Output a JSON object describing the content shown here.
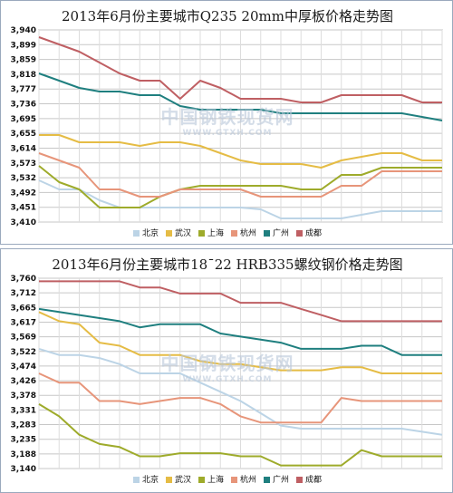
{
  "charts": [
    {
      "title": "2013年6月份主要城市Q235 20mm中厚板价格走势图",
      "watermark": {
        "main": "中国钢铁现货网",
        "sub": "WWW.GTXH.COM"
      }
    },
    {
      "title": "2013年6月份主要城市18¯22 HRB335螺纹钢价格走势图",
      "watermark": {
        "main": "中国钢铁现货网",
        "sub": "WWW.GTXH.COM"
      }
    }
  ],
  "series_colors": {
    "北京": "#bcd4e6",
    "武汉": "#e5bc45",
    "上海": "#9eab2b",
    "杭州": "#e7957a",
    "广州": "#1f7f7f",
    "成都": "#bf5f63"
  },
  "chart_data": [
    {
      "type": "line",
      "title": "2013年6月份主要城市Q235 20mm中厚板价格走势图",
      "ylim": [
        3410,
        3940
      ],
      "yticks": [
        "3,940",
        "3,899",
        "3,859",
        "3,818",
        "3,777",
        "3,736",
        "3,695",
        "3,655",
        "3,614",
        "3,573",
        "3,532",
        "3,492",
        "3,451",
        "3,410"
      ],
      "x": [
        1,
        2,
        3,
        4,
        5,
        6,
        7,
        8,
        9,
        10,
        11,
        12,
        13,
        14,
        15,
        16,
        17,
        18,
        19,
        20,
        21
      ],
      "grid": true,
      "legend_position": "bottom",
      "series": [
        {
          "name": "北京",
          "values": [
            3525,
            3500,
            3500,
            3470,
            3450,
            3450,
            3450,
            3450,
            3450,
            3450,
            3450,
            3445,
            3420,
            3420,
            3420,
            3420,
            3430,
            3440,
            3440,
            3440,
            3440
          ]
        },
        {
          "name": "武汉",
          "values": [
            3650,
            3650,
            3630,
            3630,
            3630,
            3620,
            3630,
            3630,
            3620,
            3600,
            3580,
            3570,
            3570,
            3570,
            3560,
            3580,
            3590,
            3600,
            3600,
            3580,
            3580
          ]
        },
        {
          "name": "上海",
          "values": [
            3565,
            3520,
            3500,
            3450,
            3450,
            3450,
            3480,
            3500,
            3510,
            3510,
            3510,
            3510,
            3510,
            3500,
            3500,
            3540,
            3540,
            3560,
            3560,
            3560,
            3560
          ]
        },
        {
          "name": "杭州",
          "values": [
            3600,
            3580,
            3560,
            3500,
            3500,
            3480,
            3480,
            3500,
            3500,
            3500,
            3500,
            3480,
            3480,
            3480,
            3480,
            3510,
            3510,
            3550,
            3550,
            3550,
            3550
          ]
        },
        {
          "name": "广州",
          "values": [
            3820,
            3800,
            3780,
            3770,
            3770,
            3760,
            3760,
            3730,
            3720,
            3720,
            3720,
            3720,
            3710,
            3710,
            3710,
            3710,
            3710,
            3710,
            3710,
            3700,
            3690
          ]
        },
        {
          "name": "成都",
          "values": [
            3920,
            3900,
            3880,
            3850,
            3820,
            3800,
            3800,
            3750,
            3800,
            3780,
            3750,
            3750,
            3750,
            3740,
            3740,
            3760,
            3760,
            3760,
            3760,
            3740,
            3740
          ]
        }
      ]
    },
    {
      "type": "line",
      "title": "2013年6月份主要城市18¯22 HRB335螺纹钢价格走势图",
      "ylim": [
        3140,
        3760
      ],
      "yticks": [
        "3,760",
        "3,712",
        "3,665",
        "3,617",
        "3,569",
        "3,522",
        "3,474",
        "3,426",
        "3,378",
        "3,331",
        "3,283",
        "3,235",
        "3,188",
        "3,140"
      ],
      "x": [
        1,
        2,
        3,
        4,
        5,
        6,
        7,
        8,
        9,
        10,
        11,
        12,
        13,
        14,
        15,
        16,
        17,
        18,
        19,
        20,
        21
      ],
      "grid": true,
      "legend_position": "bottom",
      "series": [
        {
          "name": "北京",
          "values": [
            3530,
            3510,
            3510,
            3500,
            3480,
            3450,
            3450,
            3450,
            3420,
            3390,
            3360,
            3320,
            3280,
            3270,
            3270,
            3270,
            3270,
            3270,
            3270,
            3260,
            3250
          ]
        },
        {
          "name": "武汉",
          "values": [
            3650,
            3620,
            3610,
            3550,
            3540,
            3510,
            3510,
            3510,
            3490,
            3480,
            3480,
            3470,
            3460,
            3460,
            3460,
            3470,
            3470,
            3450,
            3450,
            3450,
            3450
          ]
        },
        {
          "name": "上海",
          "values": [
            3350,
            3310,
            3250,
            3220,
            3210,
            3180,
            3180,
            3190,
            3190,
            3190,
            3180,
            3180,
            3150,
            3150,
            3150,
            3150,
            3200,
            3180,
            3180,
            3180,
            3180
          ]
        },
        {
          "name": "杭州",
          "values": [
            3450,
            3420,
            3420,
            3360,
            3360,
            3350,
            3360,
            3370,
            3370,
            3350,
            3310,
            3290,
            3290,
            3290,
            3290,
            3370,
            3360,
            3360,
            3360,
            3360,
            3360
          ]
        },
        {
          "name": "广州",
          "values": [
            3660,
            3650,
            3640,
            3630,
            3620,
            3600,
            3610,
            3610,
            3610,
            3580,
            3570,
            3560,
            3550,
            3530,
            3530,
            3530,
            3540,
            3540,
            3510,
            3510,
            3510
          ]
        },
        {
          "name": "成都",
          "values": [
            3750,
            3750,
            3750,
            3750,
            3750,
            3730,
            3730,
            3710,
            3710,
            3710,
            3680,
            3680,
            3680,
            3660,
            3640,
            3620,
            3620,
            3620,
            3620,
            3620,
            3620
          ]
        }
      ]
    }
  ]
}
